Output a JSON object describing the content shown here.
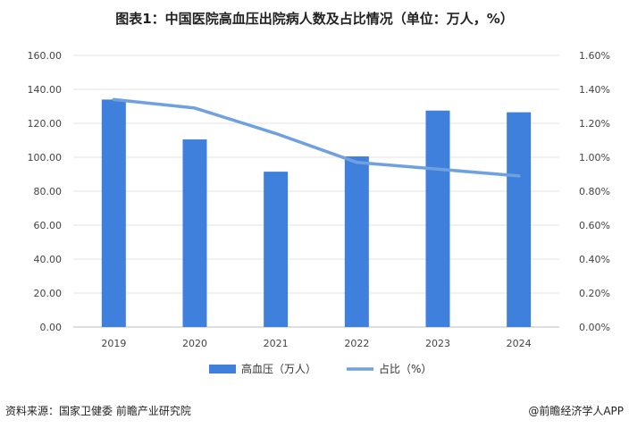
{
  "chart_data": {
    "type": "bar",
    "title": "图表1：中国医院高血压出院病人数及占比情况（单位：万人，%）",
    "categories": [
      "2019",
      "2020",
      "2021",
      "2022",
      "2023",
      "2024"
    ],
    "series": [
      {
        "name": "高血压（万人）",
        "type": "bar",
        "axis": "left",
        "color": "#3f80dc",
        "values": [
          134.0,
          110.5,
          91.5,
          100.5,
          127.5,
          126.5
        ]
      },
      {
        "name": "占比（%）",
        "type": "line",
        "axis": "right",
        "color": "#6fa0e0",
        "values": [
          1.34,
          1.29,
          1.14,
          0.97,
          0.93,
          0.89
        ]
      }
    ],
    "left_axis": {
      "ylim": [
        0,
        160
      ],
      "ticks": [
        "0.00",
        "20.00",
        "40.00",
        "60.00",
        "80.00",
        "100.00",
        "120.00",
        "140.00",
        "160.00"
      ]
    },
    "right_axis": {
      "ylim": [
        0,
        1.6
      ],
      "ticks": [
        "0.00%",
        "0.20%",
        "0.40%",
        "0.60%",
        "0.80%",
        "1.00%",
        "1.20%",
        "1.40%",
        "1.60%"
      ]
    },
    "grid": true,
    "legend_position": "bottom"
  },
  "footer": {
    "source": "资料来源：国家卫健委  前瞻产业研究院",
    "brand": "@前瞻经济学人APP"
  }
}
